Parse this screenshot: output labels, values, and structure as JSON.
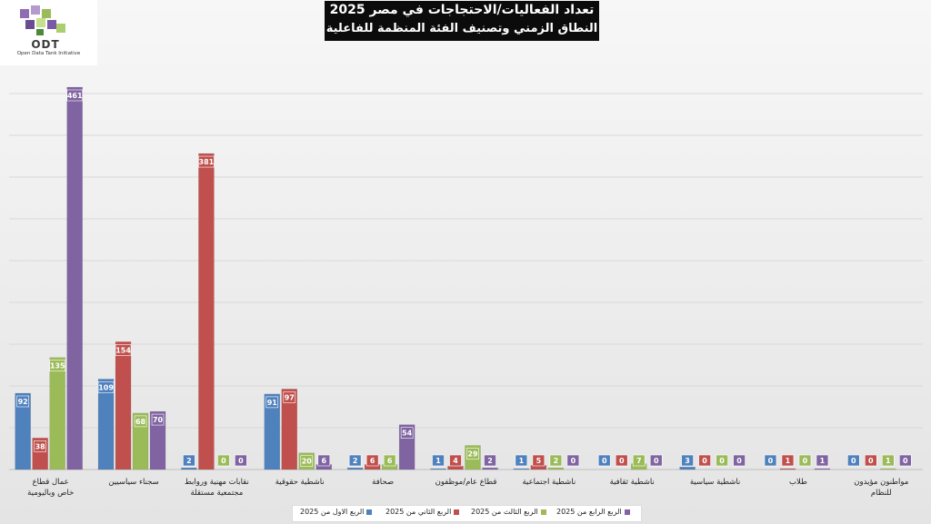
{
  "logo": {
    "name": "ODT",
    "tagline": "Open Data Tank Initiative"
  },
  "title": "تعداد الفعاليات/الاحتجاجات في مصر 2025",
  "subtitle": "النطاق الزمني وتصنيف الفئة المنظمة للفاعلية",
  "chart_data": {
    "type": "bar",
    "categories": [
      "عمال قطاع خاص وباليومية",
      "سجناء سياسيين",
      "نقابات مهنية وروابط مجتمعية مستقلة",
      "ناشطية حقوقية",
      "صحافة",
      "قطاع عام/موظفون",
      "ناشطية اجتماعية",
      "ناشطية ثقافية",
      "ناشطية سياسية",
      "طلاب",
      "مواطنون مؤيدون للنظام"
    ],
    "series": [
      {
        "name": "الربع الاول من 2025",
        "color": "#4f81bd",
        "values": [
          92,
          109,
          2,
          91,
          2,
          1,
          1,
          0,
          3,
          0,
          0
        ]
      },
      {
        "name": "الربع الثاني من 2025",
        "color": "#c0504d",
        "values": [
          38,
          154,
          381,
          97,
          6,
          4,
          5,
          0,
          0,
          1,
          0
        ]
      },
      {
        "name": "الربع الثالث من 2025",
        "color": "#9bbb59",
        "values": [
          135,
          68,
          0,
          20,
          6,
          29,
          2,
          7,
          0,
          0,
          1
        ]
      },
      {
        "name": "الربع الرابع من 2025",
        "color": "#8064a2",
        "values": [
          461,
          70,
          0,
          6,
          54,
          2,
          0,
          0,
          0,
          1,
          0
        ]
      }
    ],
    "ylim": [
      0,
      461
    ],
    "grid": true,
    "legend_position": "bottom"
  }
}
